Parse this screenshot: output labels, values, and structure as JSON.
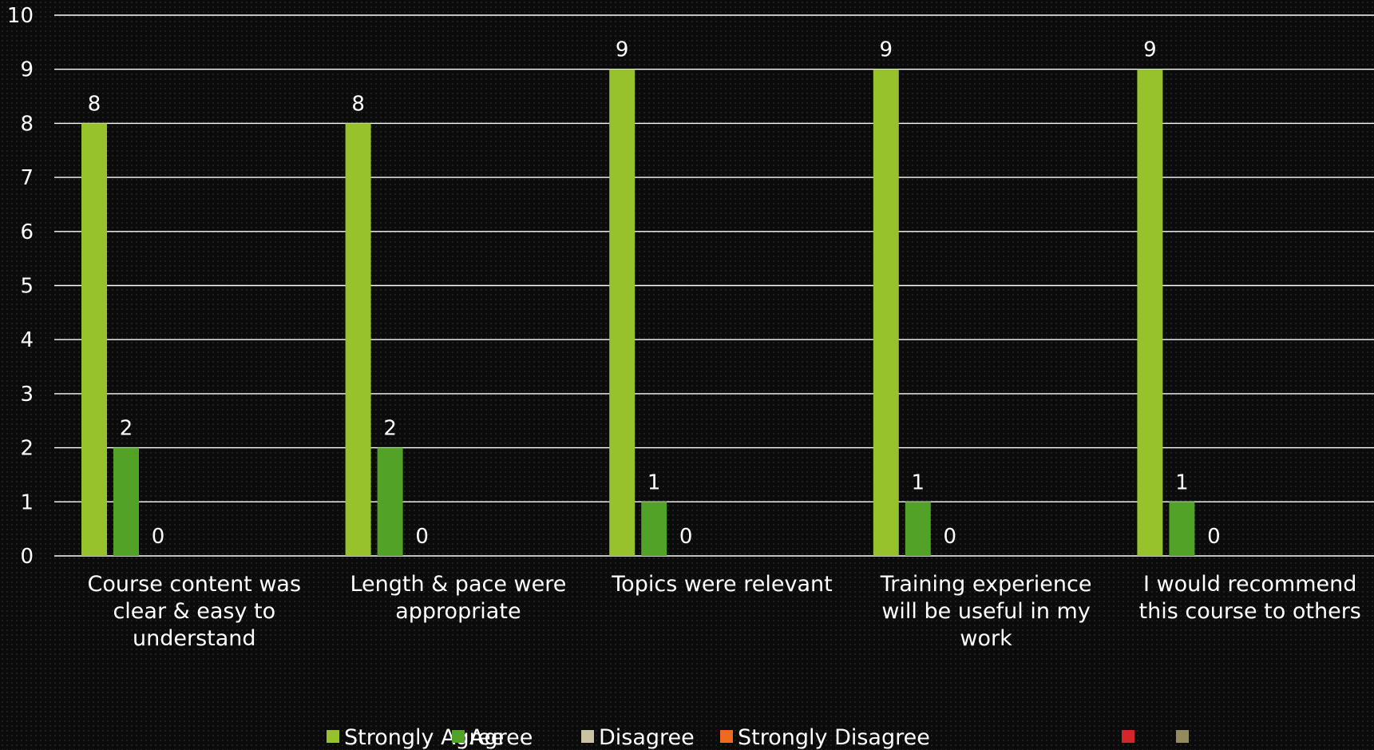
{
  "chart_data": {
    "type": "bar",
    "categories": [
      [
        "Course content was",
        "clear & easy to",
        "understand"
      ],
      [
        "Length & pace were",
        "appropriate"
      ],
      [
        "Topics were relevant"
      ],
      [
        "Training experience",
        "will be useful in my",
        "work"
      ],
      [
        "I would recommend",
        "this course to others"
      ]
    ],
    "series": [
      {
        "name": "Strongly Agree",
        "color": "#97c22c",
        "values": [
          8,
          8,
          9,
          9,
          9
        ]
      },
      {
        "name": "Agree",
        "color": "#52a227",
        "values": [
          2,
          2,
          1,
          1,
          1
        ]
      },
      {
        "name": "Disagree",
        "color": "#c9c3a3",
        "values": [
          0,
          0,
          0,
          0,
          0
        ]
      },
      {
        "name": "Strongly Disagree",
        "color": "#ed6a1e",
        "values": [
          null,
          null,
          null,
          null,
          null
        ]
      },
      {
        "name": "",
        "color": "#d12727",
        "values": [
          null,
          null,
          null,
          null,
          null
        ]
      },
      {
        "name": "",
        "color": "#938b5c",
        "values": [
          null,
          null,
          null,
          null,
          null
        ]
      }
    ],
    "ylim": [
      0,
      10
    ],
    "yticks": [
      0,
      1,
      2,
      3,
      4,
      5,
      6,
      7,
      8,
      9,
      10
    ],
    "grid": true,
    "legend_position": "bottom",
    "show_data_labels": true,
    "gridline_color": "#ffffff",
    "title": "",
    "xlabel": "",
    "ylabel": ""
  }
}
